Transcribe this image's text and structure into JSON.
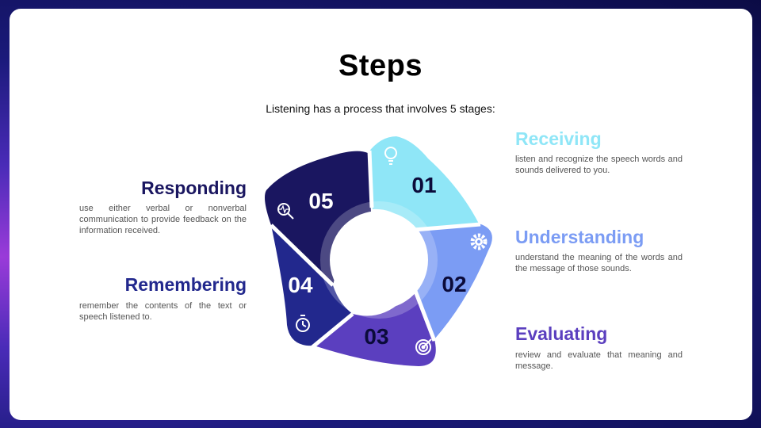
{
  "slide": {
    "title": "Steps",
    "subtitle": "Listening has a process that involves 5 stages:"
  },
  "steps": [
    {
      "number": "01",
      "title": "Receiving",
      "description": "listen and recognize the speech words and sounds delivered to you.",
      "color": "#8fe6f7",
      "icon": "lightbulb-icon"
    },
    {
      "number": "02",
      "title": "Understanding",
      "description": "understand the meaning of the words and the message of those sounds.",
      "color": "#7b9cf4",
      "icon": "gear-icon"
    },
    {
      "number": "03",
      "title": "Evaluating",
      "description": "review and evaluate that meaning and message.",
      "color": "#5b3fbf",
      "icon": "target-icon"
    },
    {
      "number": "04",
      "title": "Remembering",
      "description": "remember the contents of the text or speech listened to.",
      "color": "#22288d",
      "icon": "stopwatch-icon"
    },
    {
      "number": "05",
      "title": "Responding",
      "description": "use either verbal or nonverbal communication to provide feedback on the information received.",
      "color": "#1a1660",
      "icon": "magnifier-icon"
    }
  ]
}
